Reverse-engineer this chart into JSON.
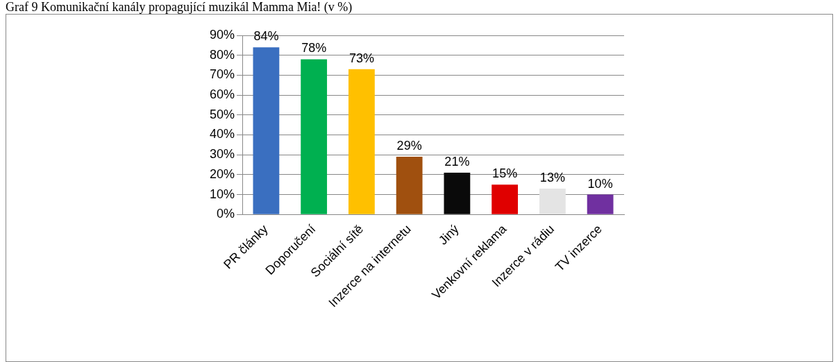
{
  "chart_data": {
    "type": "bar",
    "title": "Graf 9 Komunikační kanály propagující muzikál Mamma Mia! (v %)",
    "categories": [
      "PR články",
      "Doporučení",
      "Sociální sítě",
      "Inzerce na internetu",
      "Jiný",
      "Venkovní reklama",
      "Inzerce v rádiu",
      "TV inzerce"
    ],
    "values": [
      84,
      78,
      73,
      29,
      21,
      15,
      13,
      10
    ],
    "colors": [
      "#3a6fc0",
      "#00b050",
      "#ffc000",
      "#a0500f",
      "#0a0a0a",
      "#e00000",
      "#e4e4e4",
      "#7030a0"
    ],
    "value_labels": [
      "84%",
      "78%",
      "73%",
      "29%",
      "21%",
      "15%",
      "13%",
      "10%"
    ],
    "ylim": [
      0,
      90
    ],
    "yticks": [
      {
        "value": 0,
        "label": "0%"
      },
      {
        "value": 10,
        "label": "10%"
      },
      {
        "value": 20,
        "label": "20%"
      },
      {
        "value": 30,
        "label": "30%"
      },
      {
        "value": 40,
        "label": "40%"
      },
      {
        "value": 50,
        "label": "50%"
      },
      {
        "value": 60,
        "label": "60%"
      },
      {
        "value": 70,
        "label": "70%"
      },
      {
        "value": 80,
        "label": "80%"
      },
      {
        "value": 90,
        "label": "90%"
      }
    ],
    "grid": "y",
    "legend": false
  }
}
